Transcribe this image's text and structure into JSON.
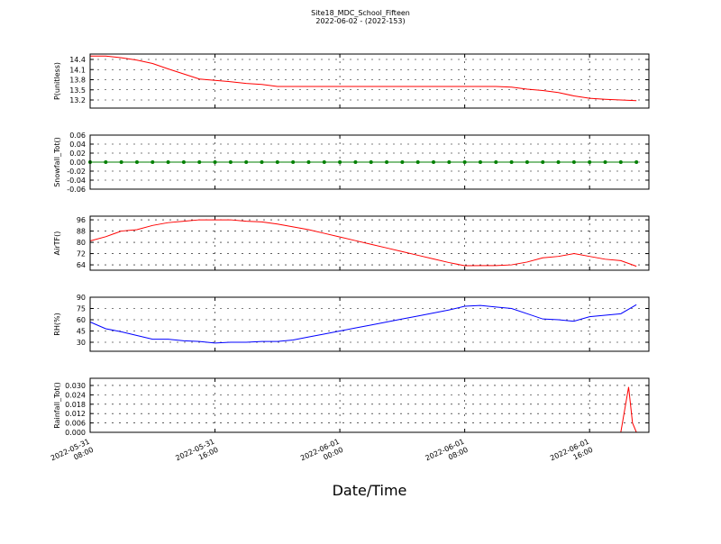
{
  "figure": {
    "title": "Site18_MDC_School_Fifteen",
    "subtitle": "2022-06-02 - (2022-153)",
    "xlabel": "Date/Time",
    "xlim": [
      "2022-05-31 08:00",
      "2022-06-01 19:48"
    ],
    "xticks": [
      "2022-05-31 08:00",
      "2022-05-31 16:00",
      "2022-06-01 00:00",
      "2022-06-01 08:00",
      "2022-06-01 16:00"
    ]
  },
  "chart_data": [
    {
      "type": "line",
      "ylabel": "P(unitless)",
      "grid": true,
      "x": [
        "2022-05-31 08:00",
        "2022-05-31 09:00",
        "2022-05-31 10:00",
        "2022-05-31 11:00",
        "2022-05-31 12:00",
        "2022-05-31 13:00",
        "2022-05-31 14:00",
        "2022-05-31 15:00",
        "2022-05-31 16:00",
        "2022-05-31 17:00",
        "2022-05-31 18:00",
        "2022-05-31 19:00",
        "2022-05-31 20:00",
        "2022-05-31 21:00",
        "2022-05-31 22:00",
        "2022-05-31 23:00",
        "2022-06-01 00:00",
        "2022-06-01 01:00",
        "2022-06-01 02:00",
        "2022-06-01 03:00",
        "2022-06-01 04:00",
        "2022-06-01 05:00",
        "2022-06-01 06:00",
        "2022-06-01 07:00",
        "2022-06-01 08:00",
        "2022-06-01 09:00",
        "2022-06-01 10:00",
        "2022-06-01 11:00",
        "2022-06-01 12:00",
        "2022-06-01 13:00",
        "2022-06-01 14:00",
        "2022-06-01 15:00",
        "2022-06-01 16:00",
        "2022-06-01 17:00",
        "2022-06-01 18:00",
        "2022-06-01 19:00"
      ],
      "series": [
        {
          "color": "#ff0000",
          "values": [
            14.5,
            14.5,
            14.45,
            14.38,
            14.28,
            14.12,
            13.97,
            13.82,
            13.78,
            13.74,
            13.69,
            13.66,
            13.6,
            13.6,
            13.6,
            13.6,
            13.6,
            13.6,
            13.6,
            13.6,
            13.6,
            13.6,
            13.6,
            13.6,
            13.6,
            13.6,
            13.6,
            13.58,
            13.52,
            13.48,
            13.42,
            13.32,
            13.25,
            13.22,
            13.2,
            13.18
          ]
        }
      ],
      "ylim": [
        12.96,
        14.56
      ],
      "yticks": [
        13.2,
        13.5,
        13.8,
        14.1,
        14.4
      ]
    },
    {
      "type": "line",
      "ylabel": "Snowfall_Tot()",
      "grid": true,
      "x": [
        "2022-05-31 08:00",
        "2022-05-31 09:00",
        "2022-05-31 10:00",
        "2022-05-31 11:00",
        "2022-05-31 12:00",
        "2022-05-31 13:00",
        "2022-05-31 14:00",
        "2022-05-31 15:00",
        "2022-05-31 16:00",
        "2022-05-31 17:00",
        "2022-05-31 18:00",
        "2022-05-31 19:00",
        "2022-05-31 20:00",
        "2022-05-31 21:00",
        "2022-05-31 22:00",
        "2022-05-31 23:00",
        "2022-06-01 00:00",
        "2022-06-01 01:00",
        "2022-06-01 02:00",
        "2022-06-01 03:00",
        "2022-06-01 04:00",
        "2022-06-01 05:00",
        "2022-06-01 06:00",
        "2022-06-01 07:00",
        "2022-06-01 08:00",
        "2022-06-01 09:00",
        "2022-06-01 10:00",
        "2022-06-01 11:00",
        "2022-06-01 12:00",
        "2022-06-01 13:00",
        "2022-06-01 14:00",
        "2022-06-01 15:00",
        "2022-06-01 16:00",
        "2022-06-01 17:00",
        "2022-06-01 18:00",
        "2022-06-01 19:00"
      ],
      "series": [
        {
          "color": "#007f00",
          "marker": true,
          "values": [
            0,
            0,
            0,
            0,
            0,
            0,
            0,
            0,
            0,
            0,
            0,
            0,
            0,
            0,
            0,
            0,
            0,
            0,
            0,
            0,
            0,
            0,
            0,
            0,
            0,
            0,
            0,
            0,
            0,
            0,
            0,
            0,
            0,
            0,
            0,
            0
          ]
        }
      ],
      "ylim": [
        -0.06,
        0.06
      ],
      "yticks": [
        -0.06,
        -0.04,
        -0.02,
        {
          "value": 0,
          "label": "0.00"
        },
        0.02,
        0.04,
        0.06
      ]
    },
    {
      "type": "line",
      "ylabel": "AirTF()",
      "grid": true,
      "x": [
        "2022-05-31 08:00",
        "2022-05-31 09:00",
        "2022-05-31 10:00",
        "2022-05-31 11:00",
        "2022-05-31 12:00",
        "2022-05-31 13:00",
        "2022-05-31 14:00",
        "2022-05-31 15:00",
        "2022-05-31 16:00",
        "2022-05-31 17:00",
        "2022-05-31 18:00",
        "2022-05-31 19:00",
        "2022-05-31 20:00",
        "2022-05-31 21:00",
        "2022-05-31 22:00",
        "2022-05-31 23:00",
        "2022-06-01 00:00",
        "2022-06-01 01:00",
        "2022-06-01 02:00",
        "2022-06-01 03:00",
        "2022-06-01 04:00",
        "2022-06-01 05:00",
        "2022-06-01 06:00",
        "2022-06-01 07:00",
        "2022-06-01 08:00",
        "2022-06-01 09:00",
        "2022-06-01 10:00",
        "2022-06-01 11:00",
        "2022-06-01 12:00",
        "2022-06-01 13:00",
        "2022-06-01 14:00",
        "2022-06-01 15:00",
        "2022-06-01 16:00",
        "2022-06-01 17:00",
        "2022-06-01 18:00",
        "2022-06-01 19:00"
      ],
      "series": [
        {
          "color": "#ff0000",
          "values": [
            81,
            84,
            88,
            89,
            92,
            94,
            95,
            96,
            96,
            96,
            95,
            94.5,
            93,
            91,
            89,
            86.4,
            83.8,
            81.2,
            78.6,
            76,
            73.4,
            70.8,
            68.2,
            65.6,
            63.4,
            63.5,
            63.5,
            64,
            66,
            69,
            70,
            72,
            70,
            68,
            67,
            63
          ]
        }
      ],
      "ylim": [
        60.2,
        98.6
      ],
      "yticks": [
        64,
        72,
        80,
        88,
        96
      ]
    },
    {
      "type": "line",
      "ylabel": "RH(%)",
      "grid": true,
      "x": [
        "2022-05-31 08:00",
        "2022-05-31 09:00",
        "2022-05-31 10:00",
        "2022-05-31 11:00",
        "2022-05-31 12:00",
        "2022-05-31 13:00",
        "2022-05-31 14:00",
        "2022-05-31 15:00",
        "2022-05-31 16:00",
        "2022-05-31 17:00",
        "2022-05-31 18:00",
        "2022-05-31 19:00",
        "2022-05-31 20:00",
        "2022-05-31 21:00",
        "2022-05-31 22:00",
        "2022-05-31 23:00",
        "2022-06-01 00:00",
        "2022-06-01 01:00",
        "2022-06-01 02:00",
        "2022-06-01 03:00",
        "2022-06-01 04:00",
        "2022-06-01 05:00",
        "2022-06-01 06:00",
        "2022-06-01 07:00",
        "2022-06-01 08:00",
        "2022-06-01 09:00",
        "2022-06-01 10:00",
        "2022-06-01 11:00",
        "2022-06-01 12:00",
        "2022-06-01 13:00",
        "2022-06-01 14:00",
        "2022-06-01 15:00",
        "2022-06-01 16:00",
        "2022-06-01 17:00",
        "2022-06-01 18:00",
        "2022-06-01 19:00"
      ],
      "series": [
        {
          "color": "#0000ff",
          "values": [
            57,
            48,
            44,
            39,
            34,
            34,
            32,
            31,
            29,
            30,
            30,
            31,
            31,
            33,
            37,
            41,
            45,
            49,
            53,
            57,
            61,
            65,
            69,
            73,
            78,
            79,
            77,
            75,
            68,
            61,
            60,
            58,
            64,
            66,
            68,
            80
          ]
        }
      ],
      "ylim": [
        18,
        90
      ],
      "yticks": [
        30,
        45,
        60,
        75,
        90
      ]
    },
    {
      "type": "line",
      "ylabel": "Rainfall_Tot()",
      "grid": true,
      "x": [
        "2022-05-31 08:00",
        "2022-06-01 18:00",
        "2022-06-01 18:30",
        "2022-06-01 18:45",
        "2022-06-01 19:00"
      ],
      "series": [
        {
          "color": "#ff0000",
          "values": [
            0,
            0,
            0.029,
            0.006,
            0
          ]
        }
      ],
      "ylim": [
        0,
        0.0346
      ],
      "yticks": [
        {
          "value": 0,
          "label": "0.000"
        },
        0.006,
        0.012,
        0.018,
        0.024,
        {
          "value": 0.03,
          "label": "0.030"
        }
      ]
    }
  ]
}
